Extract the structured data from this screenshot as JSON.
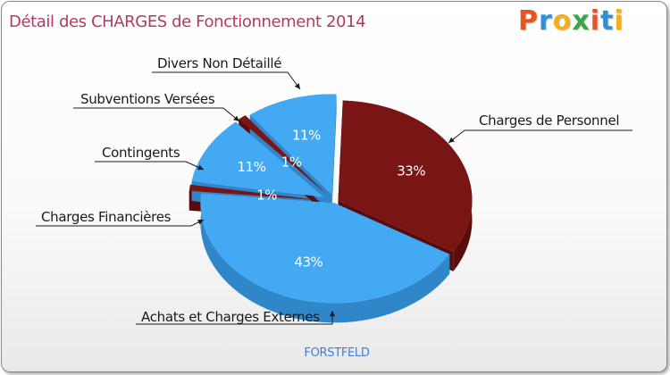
{
  "title": "Détail des CHARGES de Fonctionnement 2014",
  "logo": {
    "letters": [
      "P",
      "r",
      "o",
      "x",
      "i",
      "t",
      "i"
    ],
    "colors": [
      "#e8541c",
      "#2f8fd8",
      "#f2b01e",
      "#3aa64a",
      "#e8541c",
      "#2f8fd8",
      "#f2b01e"
    ]
  },
  "footer": "FORSTFELD",
  "colors": {
    "blue": "#42a9f2",
    "blue_side": "#2f86c9",
    "red": "#7a1515",
    "red_side": "#5a0c0c"
  },
  "chart_data": {
    "type": "pie",
    "title": "Détail des CHARGES de Fonctionnement 2014",
    "subtitle": "FORSTFELD",
    "slices": [
      {
        "label": "Charges de Personnel",
        "value": 33,
        "pct_label": "33%",
        "color": "red"
      },
      {
        "label": "Achats et Charges Externes",
        "value": 43,
        "pct_label": "43%",
        "color": "blue"
      },
      {
        "label": "Charges Financières",
        "value": 1,
        "pct_label": "1%",
        "color": "red"
      },
      {
        "label": "Contingents",
        "value": 11,
        "pct_label": "11%",
        "color": "blue"
      },
      {
        "label": "Subventions Versées",
        "value": 1,
        "pct_label": "1%",
        "color": "red"
      },
      {
        "label": "Divers Non Détaillé",
        "value": 11,
        "pct_label": "11%",
        "color": "blue"
      }
    ]
  }
}
